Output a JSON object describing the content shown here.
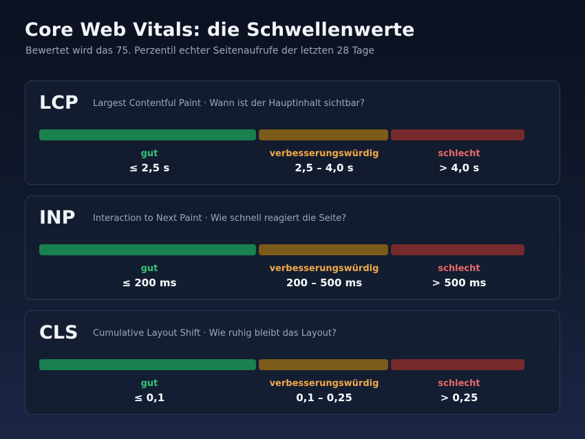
{
  "header": {
    "title": "Core Web Vitals: die Schwellenwerte",
    "subtitle": "Bewertet wird das 75. Perzentil echter Seitenaufrufe der letzten 28 Tage"
  },
  "colors": {
    "good_bar": "#18814f",
    "mid_bar": "#7c5a19",
    "bad_bar": "#762a2c",
    "good_text": "#34c27a",
    "mid_text": "#f0a848",
    "bad_text": "#e86a6a"
  },
  "zones": {
    "good": "gut",
    "mid": "verbesserungswürdig",
    "bad": "schlecht"
  },
  "metrics": [
    {
      "abbr": "LCP",
      "description": "Largest Contentful Paint · Wann ist der Hauptinhalt sichtbar?",
      "good_range": "≤ 2,5 s",
      "mid_range": "2,5 – 4,0 s",
      "bad_range": "> 4,0 s"
    },
    {
      "abbr": "INP",
      "description": "Interaction to Next Paint · Wie schnell reagiert die Seite?",
      "good_range": "≤ 200 ms",
      "mid_range": "200 – 500 ms",
      "bad_range": "> 500 ms"
    },
    {
      "abbr": "CLS",
      "description": "Cumulative Layout Shift · Wie ruhig bleibt das Layout?",
      "good_range": "≤ 0,1",
      "mid_range": "0,1 – 0,25",
      "bad_range": "> 0,25"
    }
  ]
}
